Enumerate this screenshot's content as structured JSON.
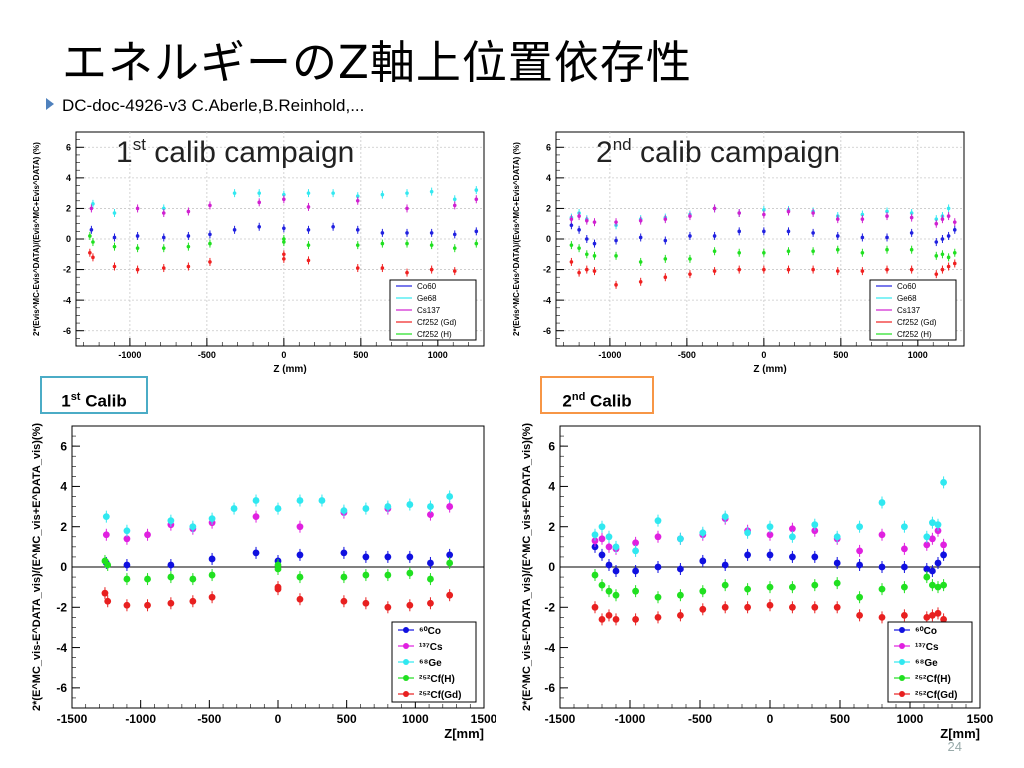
{
  "slide": {
    "title": "エネルギーのZ軸上位置依存性",
    "bullet": "DC-doc-4926-v3 C.Aberle,B.Reinhold,...",
    "page_number": "24",
    "tag_left": {
      "base": "1",
      "sup": "st",
      "rest": " Calib",
      "border_color": "#4bacc6"
    },
    "tag_right": {
      "base": "2",
      "sup": "nd",
      "rest": " Calib",
      "border_color": "#f79646"
    }
  },
  "chart_data": [
    {
      "type": "scatter",
      "heading": {
        "base": "1",
        "sup": "st",
        "rest": " calib campaign"
      },
      "xlabel": "Z (mm)",
      "ylabel": "2*(Evis^MC-Evis^DATA)/(Evis^MC+Evis^DATA) (%)",
      "xlim": [
        -1350,
        1300
      ],
      "ylim": [
        -7,
        7
      ],
      "xticks": [
        -1000,
        -500,
        0,
        500,
        1000
      ],
      "yticks": [
        -6,
        -4,
        -2,
        0,
        2,
        4,
        6
      ],
      "legend": "bottom-right",
      "series": [
        {
          "name": "Co60",
          "color": "#2020e0",
          "x": [
            -1250,
            -1100,
            -950,
            -780,
            -620,
            -480,
            -320,
            -160,
            0,
            160,
            320,
            480,
            640,
            800,
            960,
            1110,
            1250
          ],
          "y": [
            0.6,
            0.1,
            0.2,
            0.1,
            0.2,
            0.3,
            0.6,
            0.8,
            0.7,
            0.6,
            0.8,
            0.6,
            0.4,
            0.4,
            0.4,
            0.3,
            0.5
          ]
        },
        {
          "name": "Ge68",
          "color": "#33e8f0",
          "x": [
            -1240,
            -1100,
            -780,
            -320,
            -160,
            0,
            160,
            320,
            480,
            640,
            800,
            960,
            1110,
            1250
          ],
          "y": [
            2.3,
            1.7,
            2.0,
            3.0,
            3.0,
            2.9,
            3.0,
            3.0,
            2.8,
            2.9,
            3.0,
            3.1,
            2.6,
            3.2
          ]
        },
        {
          "name": "Cs137",
          "color": "#d020d0",
          "x": [
            -1250,
            -950,
            -780,
            -620,
            -480,
            -160,
            0,
            160,
            480,
            800,
            1110,
            1250
          ],
          "y": [
            2.0,
            2.0,
            1.7,
            1.8,
            2.2,
            2.4,
            2.6,
            2.1,
            2.5,
            2.0,
            2.2,
            2.6
          ]
        },
        {
          "name": "Cf252 (Gd)",
          "color": "#f02020",
          "x": [
            -1260,
            -1240,
            -1100,
            -950,
            -780,
            -620,
            -480,
            0,
            0,
            160,
            480,
            640,
            800,
            960,
            1110
          ],
          "y": [
            -0.9,
            -1.2,
            -1.8,
            -2.0,
            -1.9,
            -1.8,
            -1.5,
            -1.0,
            -1.3,
            -1.4,
            -1.9,
            -1.9,
            -2.2,
            -2.0,
            -2.1
          ]
        },
        {
          "name": "Cf252 (H)",
          "color": "#20e020",
          "x": [
            -1260,
            -1240,
            -1100,
            -950,
            -780,
            -620,
            -480,
            0,
            0,
            160,
            480,
            640,
            800,
            960,
            1110,
            1250
          ],
          "y": [
            0.2,
            -0.2,
            -0.5,
            -0.6,
            -0.6,
            -0.5,
            -0.3,
            0.0,
            -0.2,
            -0.4,
            -0.4,
            -0.3,
            -0.3,
            -0.4,
            -0.6,
            -0.3
          ]
        }
      ]
    },
    {
      "type": "scatter",
      "heading": {
        "base": "2",
        "sup": "nd",
        "rest": " calib campaign"
      },
      "xlabel": "Z (mm)",
      "ylabel": "2*(Evis^MC-Evis^DATA)/(Evis^MC+Evis^DATA) (%)",
      "xlim": [
        -1350,
        1300
      ],
      "ylim": [
        -7,
        7
      ],
      "xticks": [
        -1000,
        -500,
        0,
        500,
        1000
      ],
      "yticks": [
        -6,
        -4,
        -2,
        0,
        2,
        4,
        6
      ],
      "legend": "bottom-right",
      "series": [
        {
          "name": "Co60",
          "color": "#2020e0",
          "x": [
            -1250,
            -1200,
            -1150,
            -1100,
            -960,
            -800,
            -640,
            -480,
            -320,
            -160,
            0,
            160,
            320,
            480,
            640,
            800,
            960,
            1120,
            1160,
            1200,
            1240
          ],
          "y": [
            0.9,
            0.6,
            0.0,
            -0.3,
            -0.1,
            0.1,
            -0.1,
            0.2,
            0.2,
            0.5,
            0.5,
            0.5,
            0.4,
            0.2,
            0.1,
            0.1,
            0.4,
            -0.2,
            0.0,
            0.2,
            0.6
          ]
        },
        {
          "name": "Ge68",
          "color": "#33e8f0",
          "x": [
            -1250,
            -1200,
            -1150,
            -960,
            -800,
            -640,
            -480,
            -320,
            -160,
            0,
            160,
            320,
            480,
            640,
            800,
            960,
            1120,
            1160,
            1200
          ],
          "y": [
            1.4,
            1.7,
            1.3,
            0.9,
            1.3,
            1.4,
            1.6,
            2.0,
            1.7,
            1.9,
            1.9,
            1.8,
            1.5,
            1.6,
            1.8,
            1.7,
            1.3,
            1.5,
            2.0
          ]
        },
        {
          "name": "Cs137",
          "color": "#d020d0",
          "x": [
            -1250,
            -1200,
            -1150,
            -1100,
            -960,
            -800,
            -640,
            -480,
            -320,
            -160,
            0,
            160,
            320,
            480,
            640,
            800,
            960,
            1120,
            1160,
            1200,
            1240
          ],
          "y": [
            1.3,
            1.5,
            1.2,
            1.1,
            1.1,
            1.2,
            1.3,
            1.5,
            2.0,
            1.7,
            1.6,
            1.8,
            1.7,
            1.3,
            1.3,
            1.5,
            1.4,
            1.0,
            1.3,
            1.5,
            1.1
          ]
        },
        {
          "name": "Cf252 (Gd)",
          "color": "#f02020",
          "x": [
            -1250,
            -1200,
            -1150,
            -1100,
            -960,
            -800,
            -640,
            -480,
            -320,
            -160,
            0,
            160,
            320,
            480,
            640,
            800,
            960,
            1120,
            1160,
            1200,
            1240
          ],
          "y": [
            -1.5,
            -2.2,
            -2.0,
            -2.1,
            -3.0,
            -2.8,
            -2.5,
            -2.3,
            -2.1,
            -2.0,
            -2.0,
            -2.0,
            -2.0,
            -2.1,
            -2.1,
            -2.0,
            -2.0,
            -2.3,
            -2.0,
            -1.8,
            -1.6
          ]
        },
        {
          "name": "Cf252 (H)",
          "color": "#20e020",
          "x": [
            -1250,
            -1200,
            -1150,
            -1100,
            -960,
            -800,
            -640,
            -480,
            -320,
            -160,
            0,
            160,
            320,
            480,
            640,
            800,
            960,
            1120,
            1160,
            1200,
            1240
          ],
          "y": [
            -0.4,
            -0.6,
            -1.0,
            -1.1,
            -1.1,
            -1.5,
            -1.3,
            -1.3,
            -0.8,
            -0.9,
            -0.9,
            -0.8,
            -0.8,
            -0.7,
            -0.9,
            -0.7,
            -0.7,
            -1.1,
            -1.0,
            -1.2,
            -0.9
          ]
        }
      ]
    },
    {
      "type": "scatter",
      "xlabel": "Z[mm]",
      "ylabel": "2*(E^MC_vis-E^DATA_vis)/(E^MC_vis+E^DATA_vis)(%)",
      "xlim": [
        -1500,
        1500
      ],
      "ylim": [
        -7,
        7
      ],
      "xticks": [
        -1500,
        -1000,
        -500,
        0,
        500,
        1000,
        1500
      ],
      "yticks": [
        -6,
        -4,
        -2,
        0,
        2,
        4,
        6
      ],
      "legend": "bottom-right",
      "series": [
        {
          "name": "⁶⁰Co",
          "color": "#1010e0",
          "x": [
            -1250,
            -1100,
            -780,
            -480,
            -160,
            0,
            160,
            480,
            640,
            800,
            960,
            1110,
            1250
          ],
          "y": [
            0.2,
            0.1,
            0.1,
            0.4,
            0.7,
            0.3,
            0.6,
            0.7,
            0.5,
            0.5,
            0.5,
            0.2,
            0.6
          ]
        },
        {
          "name": "¹³⁷Cs",
          "color": "#e020e0",
          "x": [
            -1250,
            -1100,
            -950,
            -780,
            -620,
            -480,
            -160,
            160,
            480,
            800,
            1110,
            1250
          ],
          "y": [
            1.6,
            1.4,
            1.6,
            2.1,
            1.9,
            2.2,
            2.5,
            2.0,
            2.7,
            2.9,
            2.6,
            3.0
          ]
        },
        {
          "name": "⁶⁸Ge",
          "color": "#30e8f0",
          "x": [
            -1250,
            -1100,
            -780,
            -620,
            -480,
            -320,
            -160,
            0,
            160,
            320,
            480,
            640,
            800,
            960,
            1110,
            1250
          ],
          "y": [
            2.5,
            1.8,
            2.3,
            2.0,
            2.4,
            2.9,
            3.3,
            2.9,
            3.3,
            3.3,
            2.8,
            2.9,
            3.0,
            3.1,
            3.0,
            3.5
          ]
        },
        {
          "name": "²⁵²Cf(H)",
          "color": "#20e020",
          "x": [
            -1260,
            -1240,
            -1100,
            -950,
            -780,
            -620,
            -480,
            0,
            0,
            160,
            480,
            640,
            800,
            960,
            1110,
            1250
          ],
          "y": [
            0.3,
            0.1,
            -0.6,
            -0.6,
            -0.5,
            -0.6,
            -0.4,
            -0.1,
            0.1,
            -0.5,
            -0.5,
            -0.4,
            -0.4,
            -0.3,
            -0.6,
            0.2
          ]
        },
        {
          "name": "²⁵²Cf(Gd)",
          "color": "#e82020",
          "x": [
            -1260,
            -1240,
            -1100,
            -950,
            -780,
            -620,
            -480,
            0,
            0,
            160,
            480,
            640,
            800,
            960,
            1110,
            1250
          ],
          "y": [
            -1.3,
            -1.7,
            -1.9,
            -1.9,
            -1.8,
            -1.7,
            -1.5,
            -1.0,
            -1.1,
            -1.6,
            -1.7,
            -1.8,
            -2.0,
            -1.9,
            -1.8,
            -1.4
          ]
        }
      ]
    },
    {
      "type": "scatter",
      "xlabel": "Z[mm]",
      "ylabel": "2*(E^MC_vis-E^DATA_vis)/(E^MC_vis+E^DATA_vis)(%)",
      "xlim": [
        -1500,
        1500
      ],
      "ylim": [
        -7,
        7
      ],
      "xticks": [
        -1500,
        -1000,
        -500,
        0,
        500,
        1000,
        1500
      ],
      "yticks": [
        -6,
        -4,
        -2,
        0,
        2,
        4,
        6
      ],
      "legend": "bottom-right",
      "series": [
        {
          "name": "⁶⁰Co",
          "color": "#1010e0",
          "x": [
            -1250,
            -1200,
            -1150,
            -1100,
            -960,
            -800,
            -640,
            -480,
            -320,
            -160,
            0,
            160,
            320,
            480,
            640,
            800,
            960,
            1120,
            1160,
            1200,
            1240
          ],
          "y": [
            1.0,
            0.6,
            0.1,
            -0.2,
            -0.2,
            0.0,
            -0.1,
            0.3,
            0.1,
            0.6,
            0.6,
            0.5,
            0.5,
            0.2,
            0.1,
            0.0,
            0.0,
            -0.1,
            -0.2,
            0.2,
            0.6
          ]
        },
        {
          "name": "¹³⁷Cs",
          "color": "#e020e0",
          "x": [
            -1250,
            -1200,
            -1150,
            -1100,
            -960,
            -800,
            -640,
            -480,
            -320,
            -160,
            0,
            160,
            320,
            480,
            640,
            800,
            960,
            1120,
            1160,
            1200,
            1240
          ],
          "y": [
            1.3,
            1.4,
            1.0,
            0.9,
            1.2,
            1.5,
            1.4,
            1.6,
            2.4,
            1.8,
            1.6,
            1.9,
            1.8,
            1.4,
            0.8,
            1.6,
            0.9,
            1.1,
            1.4,
            1.8,
            1.1
          ]
        },
        {
          "name": "⁶⁸Ge",
          "color": "#30e8f0",
          "x": [
            -1250,
            -1200,
            -1150,
            -1100,
            -960,
            -800,
            -640,
            -480,
            -320,
            -160,
            0,
            160,
            320,
            480,
            640,
            800,
            960,
            1120,
            1160,
            1200,
            1240
          ],
          "y": [
            1.6,
            2.0,
            1.5,
            1.0,
            0.8,
            2.3,
            1.4,
            1.7,
            2.5,
            1.7,
            2.0,
            1.5,
            2.1,
            1.5,
            2.0,
            3.2,
            2.0,
            1.5,
            2.2,
            2.1,
            4.2
          ]
        },
        {
          "name": "²⁵²Cf(H)",
          "color": "#20e020",
          "x": [
            -1250,
            -1200,
            -1150,
            -1100,
            -960,
            -800,
            -640,
            -480,
            -320,
            -160,
            0,
            160,
            320,
            480,
            640,
            800,
            960,
            1120,
            1160,
            1200,
            1240
          ],
          "y": [
            -0.4,
            -0.9,
            -1.2,
            -1.4,
            -1.2,
            -1.5,
            -1.4,
            -1.2,
            -0.9,
            -1.1,
            -1.0,
            -1.0,
            -0.9,
            -0.8,
            -1.5,
            -1.1,
            -1.0,
            -0.5,
            -0.9,
            -1.0,
            -0.9
          ]
        },
        {
          "name": "²⁵²Cf(Gd)",
          "color": "#e82020",
          "x": [
            -1250,
            -1200,
            -1150,
            -1100,
            -960,
            -800,
            -640,
            -480,
            -320,
            -160,
            0,
            160,
            320,
            480,
            640,
            800,
            960,
            1120,
            1160,
            1200,
            1240
          ],
          "y": [
            -2.0,
            -2.6,
            -2.4,
            -2.6,
            -2.6,
            -2.5,
            -2.4,
            -2.1,
            -2.0,
            -2.0,
            -1.9,
            -2.0,
            -2.0,
            -2.0,
            -2.4,
            -2.5,
            -2.4,
            -2.5,
            -2.4,
            -2.3,
            -2.6
          ]
        }
      ]
    }
  ]
}
